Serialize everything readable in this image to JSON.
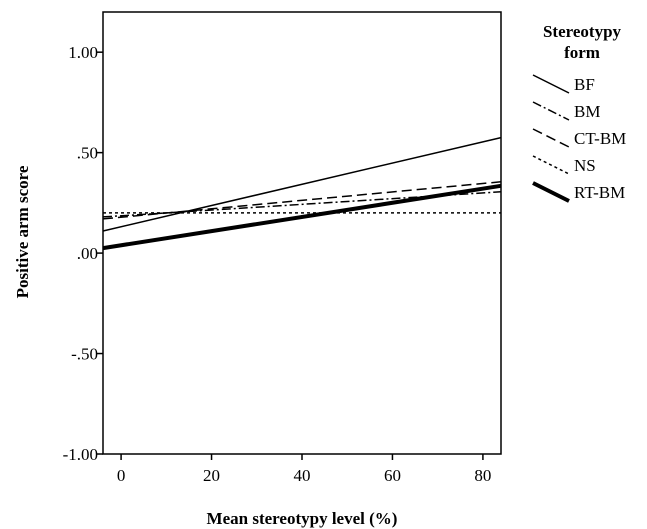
{
  "chart_data": {
    "type": "line",
    "title": "",
    "xlabel": "Mean stereotypy level (%)",
    "ylabel": "Positive arm score",
    "xlim": [
      -4,
      84
    ],
    "ylim": [
      -1.0,
      1.2
    ],
    "x_ticks": [
      0,
      20,
      40,
      60,
      80
    ],
    "x_tick_labels": [
      "0",
      "20",
      "40",
      "60",
      "80"
    ],
    "y_ticks": [
      1.0,
      0.5,
      0.0,
      -0.5,
      -1.0
    ],
    "y_tick_labels": [
      "1.00",
      ".50",
      ".00",
      "-.50",
      "-1.00"
    ],
    "grid": false,
    "legend_position": "right",
    "legend_title_lines": [
      "Stereotypy",
      "form"
    ],
    "series": [
      {
        "name": "BF",
        "style": "solid",
        "width": 1.5,
        "x": [
          -4,
          84
        ],
        "y": [
          0.11,
          0.575
        ]
      },
      {
        "name": "BM",
        "style": "dashdot",
        "width": 1.5,
        "x": [
          -4,
          84
        ],
        "y": [
          0.18,
          0.305
        ]
      },
      {
        "name": "CT-BM",
        "style": "dashed",
        "width": 1.5,
        "x": [
          -4,
          84
        ],
        "y": [
          0.17,
          0.355
        ]
      },
      {
        "name": "NS",
        "style": "dotted",
        "width": 1.5,
        "x": [
          -4,
          84
        ],
        "y": [
          0.2,
          0.2
        ]
      },
      {
        "name": "RT-BM",
        "style": "solid-bold",
        "width": 4,
        "x": [
          -4,
          84
        ],
        "y": [
          0.025,
          0.335
        ]
      }
    ]
  }
}
